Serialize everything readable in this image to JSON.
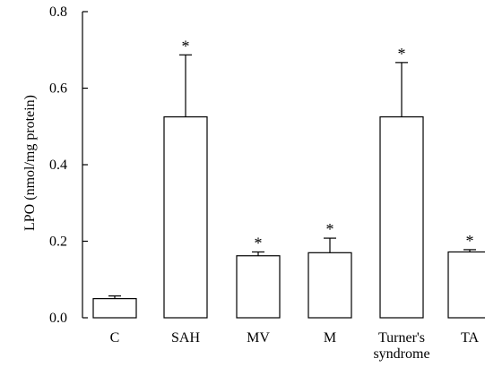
{
  "chart_data": {
    "type": "bar",
    "title": "",
    "xlabel": "",
    "ylabel": "LPO (nmol/mg protein)",
    "ylim": [
      0,
      0.8
    ],
    "yticks": [
      "0.0",
      "0.2",
      "0.4",
      "0.6",
      "0.8"
    ],
    "categories": [
      "C",
      "SAH",
      "MV",
      "M",
      "Turner's syndrome",
      "TA"
    ],
    "category_lines": [
      [
        "C"
      ],
      [
        "SAH"
      ],
      [
        "MV"
      ],
      [
        "M"
      ],
      [
        "Turner's",
        "syndrome"
      ],
      [
        "TA"
      ]
    ],
    "values": [
      0.05,
      0.525,
      0.162,
      0.17,
      0.525,
      0.172
    ],
    "errors": [
      0.007,
      0.162,
      0.01,
      0.038,
      0.142,
      0.006
    ],
    "significance": [
      "",
      "*",
      "*",
      "*",
      "*",
      "*"
    ],
    "grid": false,
    "bar_fill": "#ffffff",
    "bar_stroke": "#000000"
  }
}
